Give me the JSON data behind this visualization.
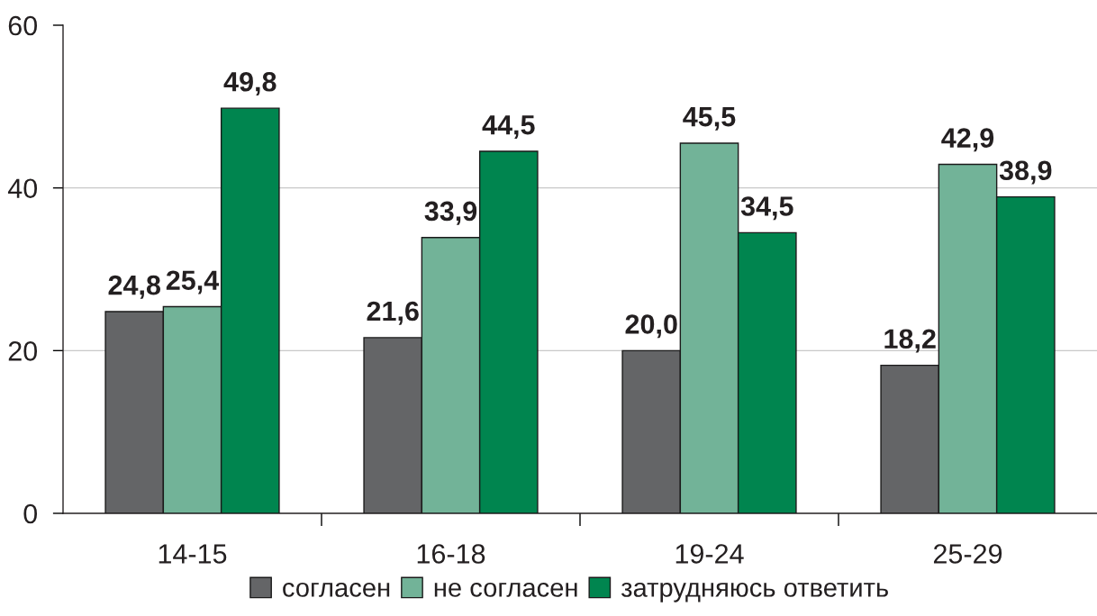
{
  "chart_data": {
    "type": "bar",
    "categories": [
      "14-15",
      "16-18",
      "19-24",
      "25-29"
    ],
    "series": [
      {
        "name": "согласен",
        "color": "#646567",
        "values": [
          24.8,
          21.6,
          20.0,
          18.2
        ],
        "value_labels": [
          "24,8",
          "21,6",
          "20,0",
          "18,2"
        ]
      },
      {
        "name": "не согласен",
        "color": "#72b398",
        "values": [
          25.4,
          33.9,
          45.5,
          42.9
        ],
        "value_labels": [
          "25,4",
          "33,9",
          "45,5",
          "42,9"
        ]
      },
      {
        "name": "затрудняюсь ответить",
        "color": "#00854f",
        "values": [
          49.8,
          44.5,
          34.5,
          38.9
        ],
        "value_labels": [
          "49,8",
          "44,5",
          "34,5",
          "38,9"
        ]
      }
    ],
    "ylim": [
      0,
      60
    ],
    "yticks": [
      0,
      20,
      40,
      60
    ],
    "grid": "y",
    "legend": "bottom"
  }
}
